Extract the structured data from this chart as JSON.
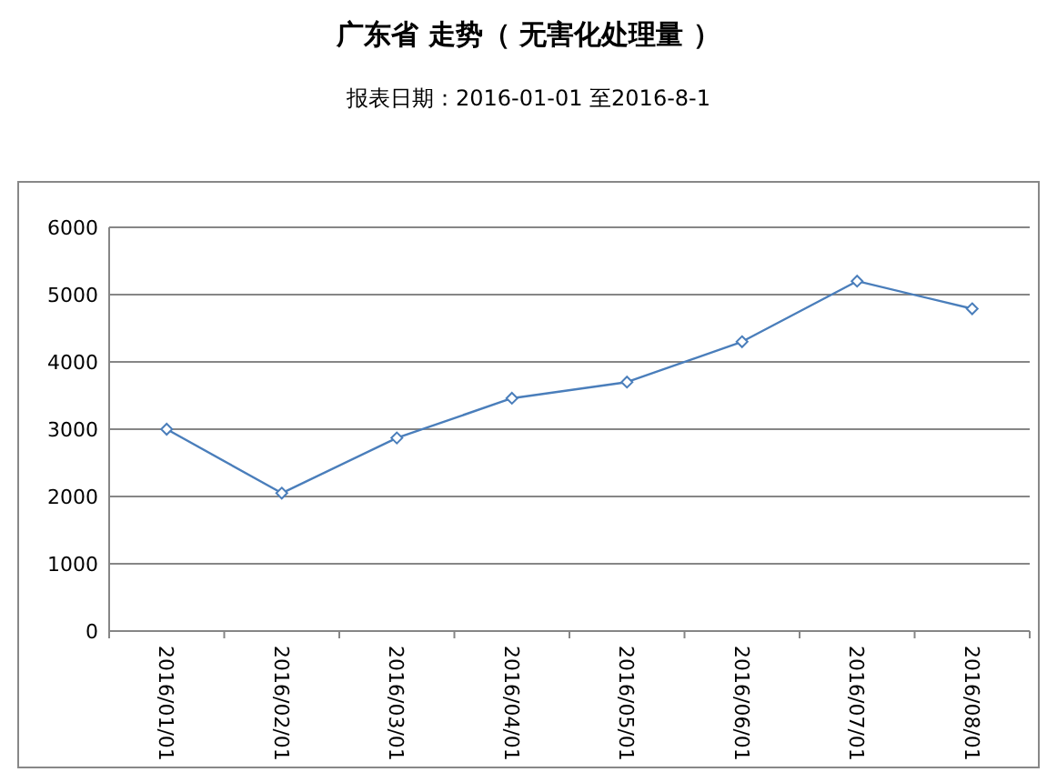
{
  "chart_data": {
    "type": "line",
    "title": "广东省 走势（ 无害化处理量 ）",
    "subtitle": "报表日期：2016-01-01 至2016-8-1",
    "categories": [
      "2016/01/01",
      "2016/02/01",
      "2016/03/01",
      "2016/04/01",
      "2016/05/01",
      "2016/06/01",
      "2016/07/01",
      "2016/08/01"
    ],
    "series": [
      {
        "color": "#4a7ebb",
        "values": [
          3000,
          2050,
          2870,
          3460,
          3700,
          4300,
          5200,
          4790
        ]
      }
    ],
    "ylim": [
      0,
      6000
    ],
    "yticks": [
      0,
      1000,
      2000,
      3000,
      4000,
      5000,
      6000
    ],
    "grid": "y",
    "marker": "diamond",
    "line_style": "solid"
  }
}
